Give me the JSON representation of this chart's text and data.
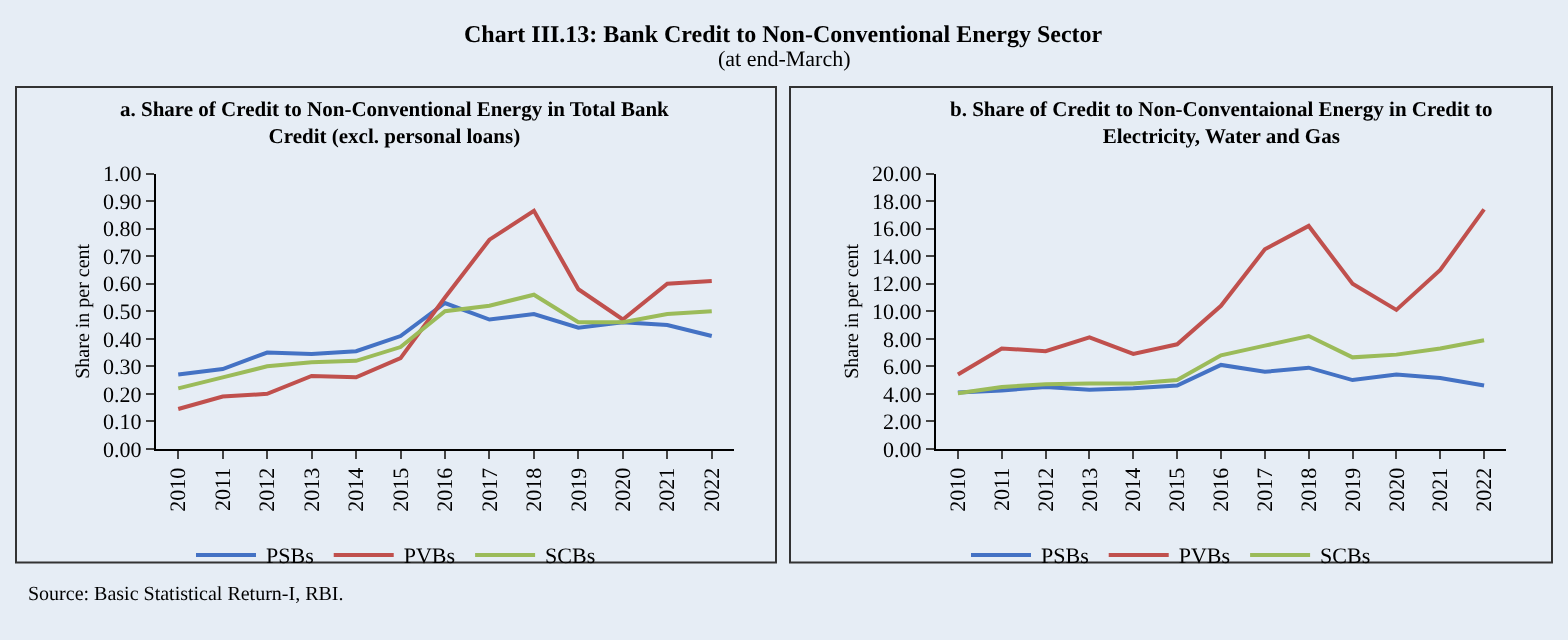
{
  "chart_data": [
    {
      "type": "line",
      "title": "a. Share of Credit to Non-Conventional Energy in Total Bank Credit (excl. personal loans)",
      "ylabel": "Share in per cent",
      "annotations": [
        "Chart III.13: Bank Credit to Non-Conventional Energy Sector",
        "(at end-March)",
        "Source: Basic Statistical Return-I, RBI."
      ],
      "categories": [
        "2010",
        "2011",
        "2012",
        "2013",
        "2014",
        "2015",
        "2016",
        "2017",
        "2018",
        "2019",
        "2020",
        "2021",
        "2022"
      ],
      "series": [
        {
          "name": "PSBs",
          "color": "#4472c4",
          "values": [
            0.27,
            0.29,
            0.35,
            0.345,
            0.355,
            0.41,
            0.53,
            0.47,
            0.49,
            0.44,
            0.46,
            0.45,
            0.41
          ]
        },
        {
          "name": "PVBs",
          "color": "#c0504d",
          "values": [
            0.145,
            0.19,
            0.2,
            0.265,
            0.26,
            0.33,
            0.55,
            0.76,
            0.865,
            0.58,
            0.47,
            0.6,
            0.61
          ]
        },
        {
          "name": "SCBs",
          "color": "#9bbb59",
          "values": [
            0.22,
            0.26,
            0.3,
            0.315,
            0.32,
            0.37,
            0.5,
            0.52,
            0.56,
            0.46,
            0.46,
            0.49,
            0.5
          ]
        }
      ],
      "ylim": [
        0,
        1
      ],
      "yticks": [
        {
          "value": 0,
          "label": "0.00"
        },
        {
          "value": 0.1,
          "label": "0.10"
        },
        {
          "value": 0.2,
          "label": "0.20"
        },
        {
          "value": 0.3,
          "label": "0.30"
        },
        {
          "value": 0.4,
          "label": "0.40"
        },
        {
          "value": 0.5,
          "label": "0.50"
        },
        {
          "value": 0.6,
          "label": "0.60"
        },
        {
          "value": 0.7,
          "label": "0.70"
        },
        {
          "value": 0.8,
          "label": "0.80"
        },
        {
          "value": 0.9,
          "label": "0.90"
        },
        {
          "value": 1,
          "label": "1.00"
        }
      ],
      "grid": false,
      "legend": "bottom",
      "line_style": "solid"
    },
    {
      "type": "line",
      "title": "b. Share of Credit to Non-Conventaional Energy in Credit to Electricity, Water and Gas",
      "ylabel": "Share in per cent",
      "categories": [
        "2010",
        "2011",
        "2012",
        "2013",
        "2014",
        "2015",
        "2016",
        "2017",
        "2018",
        "2019",
        "2020",
        "2021",
        "2022"
      ],
      "series": [
        {
          "name": "PSBs",
          "color": "#4472c4",
          "values": [
            4.1,
            4.25,
            4.5,
            4.3,
            4.4,
            4.6,
            6.1,
            5.6,
            5.9,
            5.0,
            5.4,
            5.15,
            4.6
          ]
        },
        {
          "name": "PVBs",
          "color": "#c0504d",
          "values": [
            5.4,
            7.3,
            7.1,
            8.1,
            6.9,
            7.6,
            10.4,
            14.5,
            16.2,
            12.0,
            10.1,
            13.0,
            17.4
          ]
        },
        {
          "name": "SCBs",
          "color": "#9bbb59",
          "values": [
            4.05,
            4.5,
            4.7,
            4.75,
            4.75,
            5.0,
            6.8,
            7.5,
            8.2,
            6.65,
            6.85,
            7.3,
            7.9
          ]
        }
      ],
      "ylim": [
        0,
        20
      ],
      "yticks": [
        {
          "value": 0,
          "label": "0.00"
        },
        {
          "value": 2,
          "label": "2.00"
        },
        {
          "value": 4,
          "label": "4.00"
        },
        {
          "value": 6,
          "label": "6.00"
        },
        {
          "value": 8,
          "label": "8.00"
        },
        {
          "value": 10,
          "label": "10.00"
        },
        {
          "value": 12,
          "label": "12.00"
        },
        {
          "value": 14,
          "label": "14.00"
        },
        {
          "value": 16,
          "label": "16.00"
        },
        {
          "value": 18,
          "label": "18.00"
        },
        {
          "value": 20,
          "label": "20.00"
        }
      ],
      "grid": false,
      "legend": "bottom",
      "line_style": "solid"
    }
  ]
}
